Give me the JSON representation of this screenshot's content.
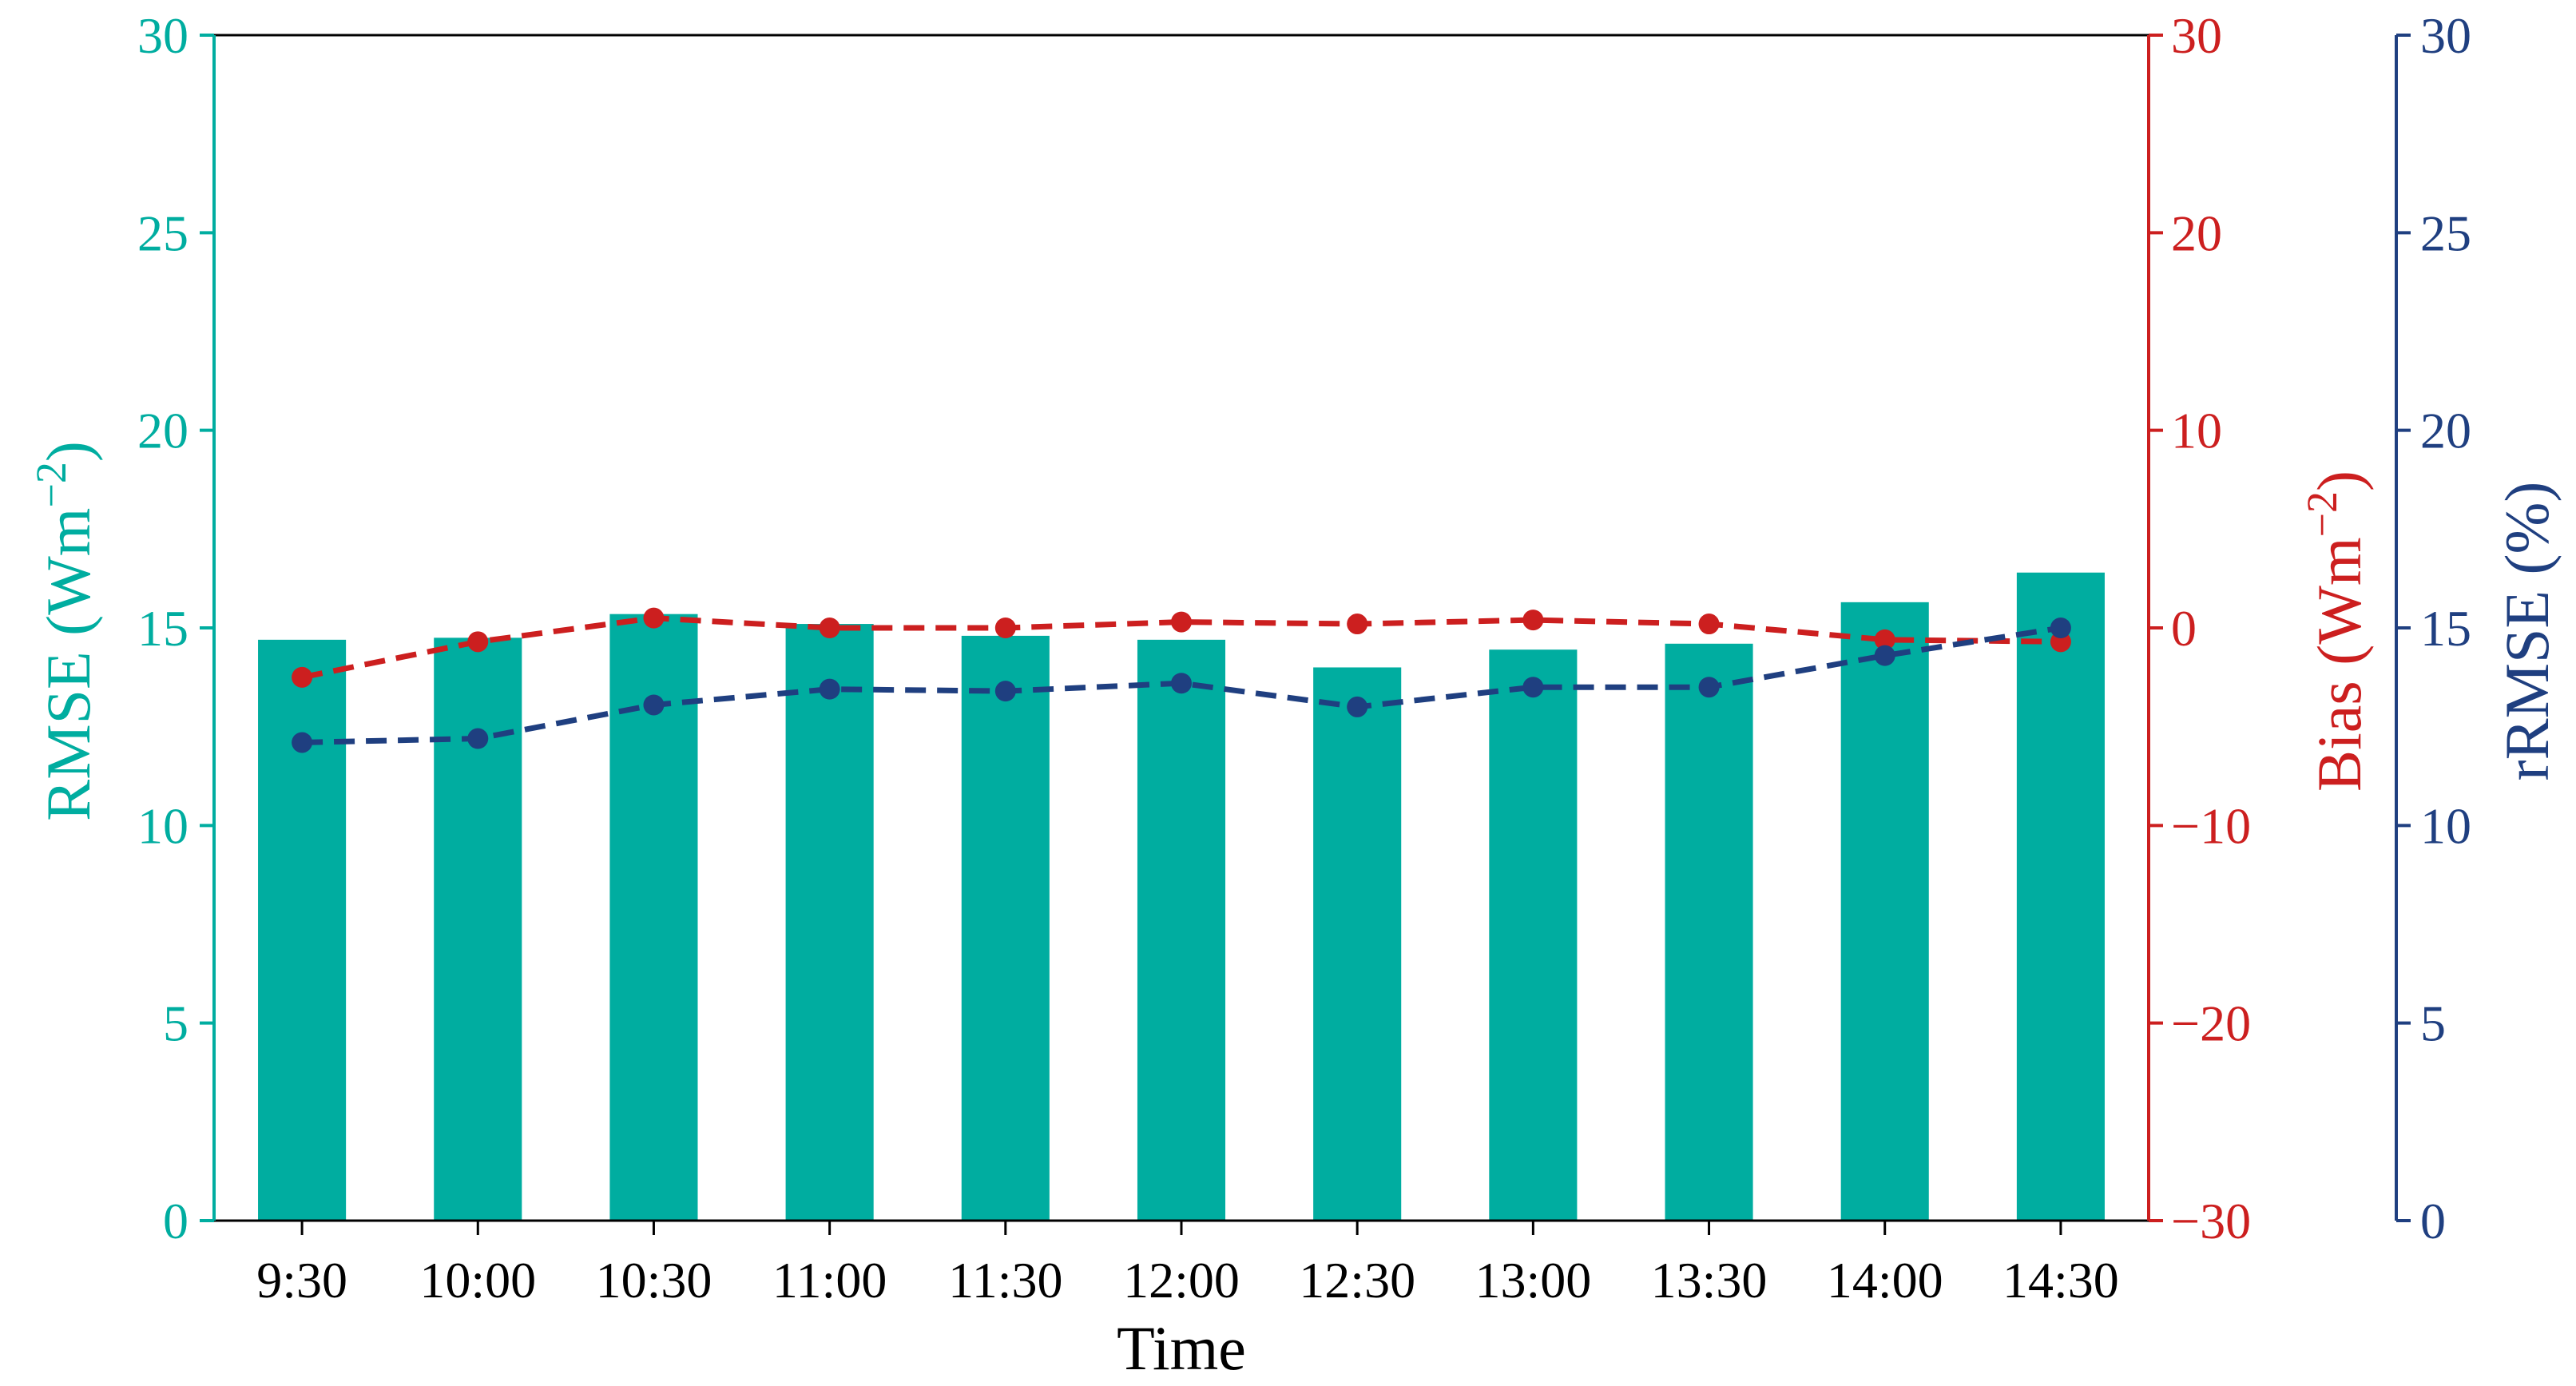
{
  "chart_data": {
    "type": "bar",
    "xlabel": "Time",
    "categories": [
      "9:30",
      "10:00",
      "10:30",
      "11:00",
      "11:30",
      "12:00",
      "12:30",
      "13:00",
      "13:30",
      "14:00",
      "14:30"
    ],
    "axes": {
      "left": {
        "label": "RMSE (Wm",
        "label_sup": "−2",
        "label_close": ")",
        "range": [
          0,
          30
        ],
        "ticks": [
          0,
          5,
          10,
          15,
          20,
          25,
          30
        ],
        "tick_labels": [
          "0",
          "5",
          "10",
          "15",
          "20",
          "25",
          "30"
        ],
        "color": "#00ada0"
      },
      "right_bias": {
        "label": "Bias (Wm",
        "label_sup": "−2",
        "label_close": ")",
        "range": [
          -30,
          30
        ],
        "ticks": [
          -30,
          -20,
          -10,
          0,
          10,
          20,
          30
        ],
        "tick_labels": [
          "−30",
          "−20",
          "−10",
          "0",
          "10",
          "20",
          "30"
        ],
        "color": "#cc1f1f"
      },
      "right_rrmse": {
        "label": "rRMSE (%)",
        "range": [
          0,
          30
        ],
        "ticks": [
          0,
          5,
          10,
          15,
          20,
          25,
          30
        ],
        "tick_labels": [
          "0",
          "5",
          "10",
          "15",
          "20",
          "25",
          "30"
        ],
        "color": "#1f3f80"
      }
    },
    "series": [
      {
        "kind": "bar",
        "axis": "left",
        "color": "#00ada0",
        "values": [
          14.7,
          14.75,
          15.35,
          15.1,
          14.8,
          14.7,
          14.0,
          14.45,
          14.6,
          15.65,
          16.4
        ]
      },
      {
        "kind": "line",
        "style": "dashed",
        "axis": "right_bias",
        "color": "#cc1f1f",
        "values": [
          -2.5,
          -0.7,
          0.5,
          0.0,
          0.0,
          0.3,
          0.2,
          0.4,
          0.2,
          -0.6,
          -0.7
        ]
      },
      {
        "kind": "line",
        "style": "dashed",
        "axis": "right_rrmse",
        "color": "#1f3f80",
        "values": [
          12.1,
          12.2,
          13.05,
          13.45,
          13.4,
          13.6,
          13.0,
          13.5,
          13.5,
          14.3,
          15.0
        ]
      }
    ],
    "grid": false,
    "legend": "none"
  }
}
